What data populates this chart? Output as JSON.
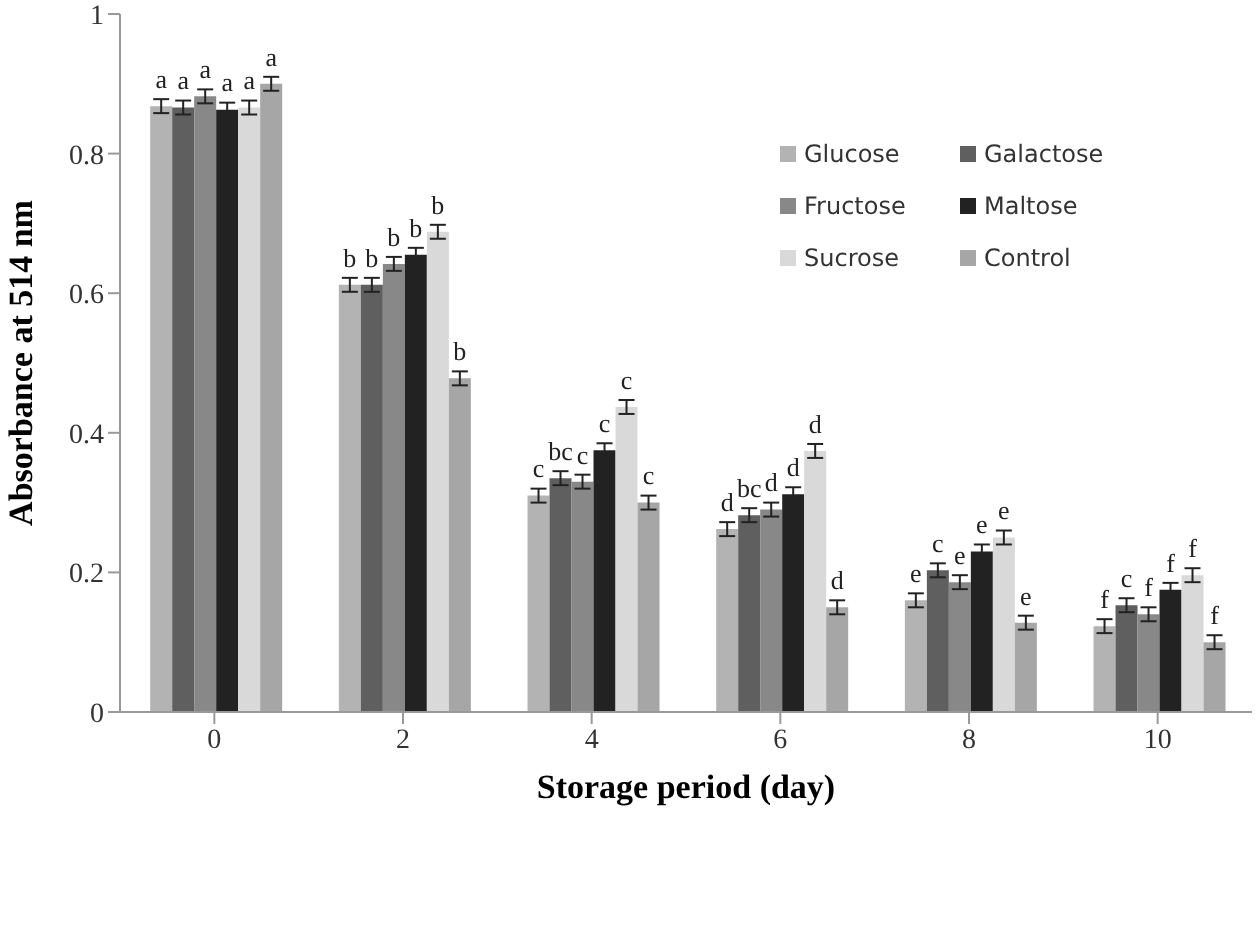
{
  "chart_data": {
    "type": "bar",
    "xlabel": "Storage period (day)",
    "ylabel": "Absorbance at 514 nm",
    "categories": [
      "0",
      "2",
      "4",
      "6",
      "8",
      "10"
    ],
    "ylim": [
      0,
      1
    ],
    "yticks": [
      0,
      0.2,
      0.4,
      0.6,
      0.8,
      1
    ],
    "grid": false,
    "legend": "top right",
    "series": [
      {
        "name": "Glucose",
        "color": "#b3b3b3",
        "values": [
          0.868,
          0.612,
          0.31,
          0.262,
          0.16,
          0.123
        ],
        "errors": [
          0.01,
          0.01,
          0.01,
          0.01,
          0.01,
          0.01
        ],
        "value_labels": [
          "a",
          "b",
          "c",
          "d",
          "e",
          "f"
        ]
      },
      {
        "name": "Galactose",
        "color": "#5f5f5f",
        "values": [
          0.866,
          0.612,
          0.335,
          0.282,
          0.203,
          0.153
        ],
        "errors": [
          0.01,
          0.01,
          0.01,
          0.01,
          0.01,
          0.01
        ],
        "value_labels": [
          "a",
          "b",
          "bc",
          "bc",
          "c",
          "c"
        ]
      },
      {
        "name": "Fructose",
        "color": "#888888",
        "values": [
          0.882,
          0.642,
          0.33,
          0.29,
          0.186,
          0.14
        ],
        "errors": [
          0.01,
          0.01,
          0.01,
          0.01,
          0.01,
          0.01
        ],
        "value_labels": [
          "a",
          "b",
          "c",
          "d",
          "e",
          "f"
        ]
      },
      {
        "name": "Maltose",
        "color": "#222222",
        "values": [
          0.863,
          0.655,
          0.375,
          0.312,
          0.23,
          0.175
        ],
        "errors": [
          0.01,
          0.01,
          0.01,
          0.01,
          0.01,
          0.01
        ],
        "value_labels": [
          "a",
          "b",
          "c",
          "d",
          "e",
          "f"
        ]
      },
      {
        "name": "Sucrose",
        "color": "#d9d9d9",
        "values": [
          0.866,
          0.688,
          0.437,
          0.374,
          0.25,
          0.196
        ],
        "errors": [
          0.01,
          0.01,
          0.01,
          0.01,
          0.01,
          0.01
        ],
        "value_labels": [
          "a",
          "b",
          "c",
          "d",
          "e",
          "f"
        ]
      },
      {
        "name": "Control",
        "color": "#a6a6a6",
        "values": [
          0.9,
          0.478,
          0.3,
          0.15,
          0.128,
          0.1
        ],
        "errors": [
          0.01,
          0.01,
          0.01,
          0.01,
          0.01,
          0.01
        ],
        "value_labels": [
          "a",
          "b",
          "c",
          "d",
          "e",
          "f"
        ]
      }
    ]
  }
}
